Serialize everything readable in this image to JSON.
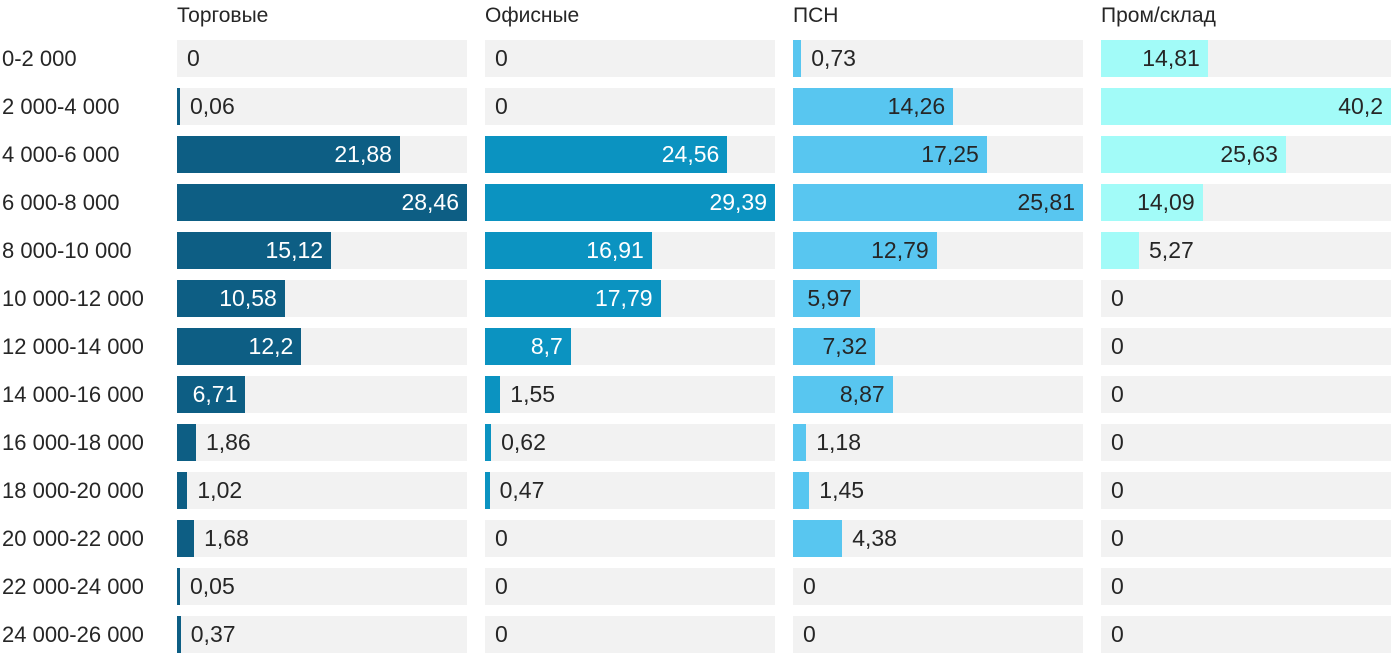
{
  "style": {
    "background": "#ffffff",
    "track_background": "#f2f2f2",
    "text_color": "#262626",
    "inside_label_light": "#ffffff",
    "inside_label_dark": "#262626"
  },
  "chart_data": {
    "type": "bar",
    "orientation": "horizontal",
    "layout": "small-multiples (4 columns, per-column max scaling, value labels with comma decimals, gray track background)",
    "title": "",
    "xlabel": "",
    "ylabel": "",
    "grid": false,
    "legend": false,
    "categories": [
      "0-2 000",
      "2 000-4 000",
      "4 000-6 000",
      "6 000-8 000",
      "8 000-10 000",
      "10 000-12 000",
      "12 000-14 000",
      "14 000-16 000",
      "16 000-18 000",
      "18 000-20 000",
      "20 000-22 000",
      "22 000-24 000",
      "24 000-26 000"
    ],
    "series": [
      {
        "name": "Торговые",
        "color": "#0d5e84",
        "inside_label_color": "#ffffff",
        "axis_max": 28.46,
        "values": [
          0,
          0.06,
          21.88,
          28.46,
          15.12,
          10.58,
          12.2,
          6.71,
          1.86,
          1.02,
          1.68,
          0.05,
          0.37
        ],
        "labels": [
          "0",
          "0,06",
          "21,88",
          "28,46",
          "15,12",
          "10,58",
          "12,2",
          "6,71",
          "1,86",
          "1,02",
          "1,68",
          "0,05",
          "0,37"
        ]
      },
      {
        "name": "Офисные",
        "color": "#0b93c1",
        "inside_label_color": "#ffffff",
        "axis_max": 29.39,
        "values": [
          0,
          0,
          24.56,
          29.39,
          16.91,
          17.79,
          8.7,
          1.55,
          0.62,
          0.47,
          0,
          0,
          0
        ],
        "labels": [
          "0",
          "0",
          "24,56",
          "29,39",
          "16,91",
          "17,79",
          "8,7",
          "1,55",
          "0,62",
          "0,47",
          "0",
          "0",
          "0"
        ]
      },
      {
        "name": "ПСН",
        "color": "#58c6f0",
        "inside_label_color": "#262626",
        "axis_max": 25.81,
        "values": [
          0.73,
          14.26,
          17.25,
          25.81,
          12.79,
          5.97,
          7.32,
          8.87,
          1.18,
          1.45,
          4.38,
          0,
          0
        ],
        "labels": [
          "0,73",
          "14,26",
          "17,25",
          "25,81",
          "12,79",
          "5,97",
          "7,32",
          "8,87",
          "1,18",
          "1,45",
          "4,38",
          "0",
          "0"
        ]
      },
      {
        "name": "Пром/склад",
        "color": "#a2fbf8",
        "inside_label_color": "#262626",
        "axis_max": 40.2,
        "values": [
          14.81,
          40.2,
          25.63,
          14.09,
          5.27,
          0,
          0,
          0,
          0,
          0,
          0,
          0,
          0
        ],
        "labels": [
          "14,81",
          "40,2",
          "25,63",
          "14,09",
          "5,27",
          "0",
          "0",
          "0",
          "0",
          "0",
          "0",
          "0",
          "0"
        ]
      }
    ]
  }
}
